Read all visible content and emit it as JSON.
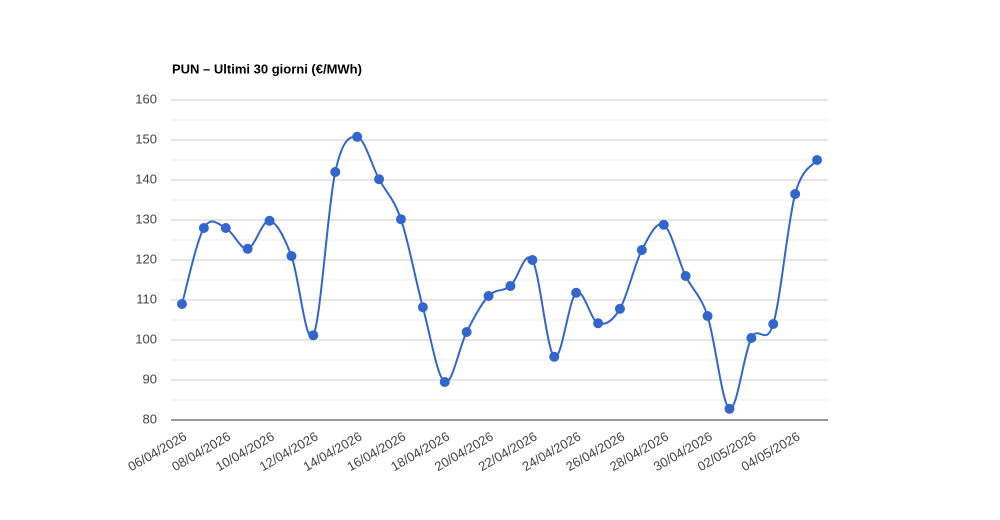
{
  "chart_data": {
    "type": "line",
    "title": "PUN – Ultimi 30 giorni (€/MWh)",
    "categories": [
      "06/04/2026",
      null,
      "08/04/2026",
      null,
      "10/04/2026",
      null,
      "12/04/2026",
      null,
      "14/04/2026",
      null,
      "16/04/2026",
      null,
      "18/04/2026",
      null,
      "20/04/2026",
      null,
      "22/04/2026",
      null,
      "24/04/2026",
      null,
      "26/04/2026",
      null,
      "28/04/2026",
      null,
      "30/04/2026",
      null,
      "02/05/2026",
      null,
      "04/05/2026",
      null
    ],
    "values": [
      109,
      128,
      128,
      122.8,
      129.8,
      121,
      101.2,
      142,
      150.8,
      140.2,
      130.2,
      108.2,
      89.5,
      102,
      111,
      113.5,
      120,
      95.8,
      111.8,
      104.2,
      107.8,
      122.5,
      128.8,
      116,
      106,
      82.8,
      100.5,
      104,
      136.5,
      145
    ],
    "color": "#3366cc",
    "ylim": [
      80,
      160
    ],
    "yticks": [
      80,
      90,
      100,
      110,
      120,
      130,
      140,
      150,
      160
    ],
    "grid": true,
    "smooth": true
  }
}
